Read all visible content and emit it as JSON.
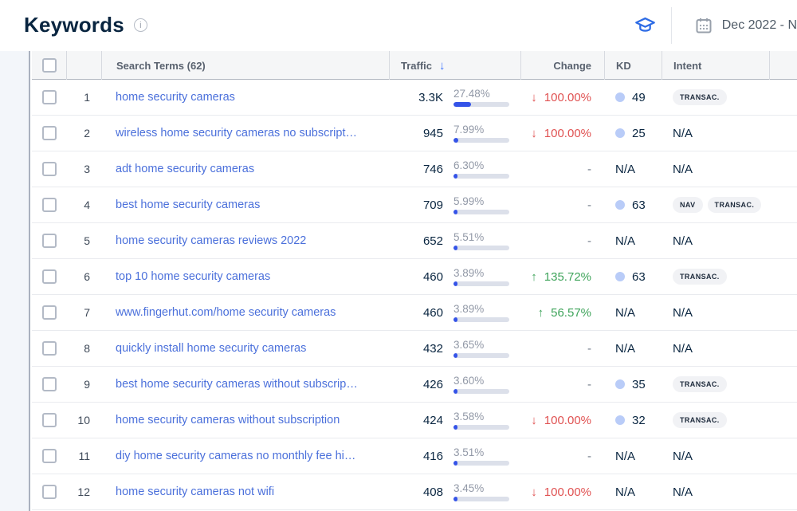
{
  "header": {
    "title": "Keywords",
    "info_icon": "info-icon",
    "education_icon": "graduation-cap-icon",
    "calendar_icon": "calendar-icon",
    "date_range": "Dec 2022 - N"
  },
  "table": {
    "columns": {
      "search_terms": "Search Terms (62)",
      "traffic": "Traffic",
      "change": "Change",
      "kd": "KD",
      "intent": "Intent"
    },
    "sort": {
      "column": "traffic",
      "direction": "desc",
      "icon": "↓"
    },
    "labels": {
      "na": "N/A",
      "no_change": "-",
      "up_arrow": "↑",
      "down_arrow": "↓"
    },
    "rows": [
      {
        "rank": 1,
        "term": "home security cameras",
        "traffic": "3.3K",
        "share": 27.48,
        "share_label": "27.48%",
        "change": {
          "direction": "down",
          "label": "100.00%"
        },
        "kd": 49,
        "intents": [
          "TRANSAC."
        ]
      },
      {
        "rank": 2,
        "term": "wireless home security cameras no subscript…",
        "traffic": "945",
        "share": 7.99,
        "share_label": "7.99%",
        "change": {
          "direction": "down",
          "label": "100.00%"
        },
        "kd": 25,
        "intents": []
      },
      {
        "rank": 3,
        "term": "adt home security cameras",
        "traffic": "746",
        "share": 6.3,
        "share_label": "6.30%",
        "change": null,
        "kd": null,
        "intents": []
      },
      {
        "rank": 4,
        "term": "best home security cameras",
        "traffic": "709",
        "share": 5.99,
        "share_label": "5.99%",
        "change": null,
        "kd": 63,
        "intents": [
          "NAV",
          "TRANSAC."
        ]
      },
      {
        "rank": 5,
        "term": "home security cameras reviews 2022",
        "traffic": "652",
        "share": 5.51,
        "share_label": "5.51%",
        "change": null,
        "kd": null,
        "intents": []
      },
      {
        "rank": 6,
        "term": "top 10 home security cameras",
        "traffic": "460",
        "share": 3.89,
        "share_label": "3.89%",
        "change": {
          "direction": "up",
          "label": "135.72%"
        },
        "kd": 63,
        "intents": [
          "TRANSAC."
        ]
      },
      {
        "rank": 7,
        "term": "www.fingerhut.com/home security cameras",
        "traffic": "460",
        "share": 3.89,
        "share_label": "3.89%",
        "change": {
          "direction": "up",
          "label": "56.57%"
        },
        "kd": null,
        "intents": []
      },
      {
        "rank": 8,
        "term": "quickly install home security cameras",
        "traffic": "432",
        "share": 3.65,
        "share_label": "3.65%",
        "change": null,
        "kd": null,
        "intents": []
      },
      {
        "rank": 9,
        "term": "best home security cameras without subscrip…",
        "traffic": "426",
        "share": 3.6,
        "share_label": "3.60%",
        "change": null,
        "kd": 35,
        "intents": [
          "TRANSAC."
        ]
      },
      {
        "rank": 10,
        "term": "home security cameras without subscription",
        "traffic": "424",
        "share": 3.58,
        "share_label": "3.58%",
        "change": {
          "direction": "down",
          "label": "100.00%"
        },
        "kd": 32,
        "intents": [
          "TRANSAC."
        ]
      },
      {
        "rank": 11,
        "term": "diy home security cameras no monthly fee hi…",
        "traffic": "416",
        "share": 3.51,
        "share_label": "3.51%",
        "change": null,
        "kd": null,
        "intents": []
      },
      {
        "rank": 12,
        "term": "home security cameras not wifi",
        "traffic": "408",
        "share": 3.45,
        "share_label": "3.45%",
        "change": {
          "direction": "down",
          "label": "100.00%"
        },
        "kd": null,
        "intents": []
      }
    ]
  },
  "colors": {
    "accent_blue": "#3e74fe",
    "link_blue": "#4b70db",
    "bar_fill": "#3453e8",
    "negative_red": "#e05252",
    "positive_green": "#3fa45b",
    "kd_dot": "#b9ccf8",
    "title_navy": "#092540"
  }
}
